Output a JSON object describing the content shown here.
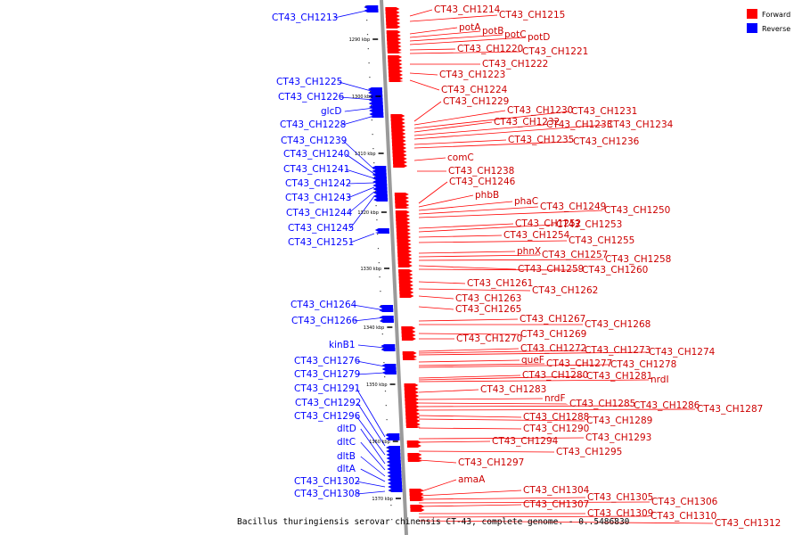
{
  "legend": {
    "forward_label": "Forward",
    "reverse_label": "Reverse",
    "forward_color": "#ff0000",
    "reverse_color": "#0000ff"
  },
  "caption": "Bacillus thuringiensis serovar chinensis CT-43, complete genome. - 0..5486830",
  "kbp_ticks": [
    "1290 kbp",
    "1300 kbp",
    "1310 kbp",
    "1320 kbp",
    "1330 kbp",
    "1340 kbp",
    "1350 kbp",
    "1360 kbp",
    "1370 kbp"
  ],
  "reverse_genes": [
    "CT43_CH1213",
    "CT43_CH1225",
    "CT43_CH1226",
    "glcD",
    "CT43_CH1228",
    "CT43_CH1239",
    "CT43_CH1240",
    "CT43_CH1241",
    "CT43_CH1242",
    "CT43_CH1243",
    "CT43_CH1244",
    "CT43_CH1245",
    "CT43_CH1251",
    "CT43_CH1264",
    "CT43_CH1266",
    "kinB1",
    "CT43_CH1276",
    "CT43_CH1279",
    "CT43_CH1291",
    "CT43_CH1292",
    "CT43_CH1296",
    "dltD",
    "dltC",
    "dltB",
    "dltA",
    "CT43_CH1302",
    "CT43_CH1308"
  ],
  "forward_genes": [
    "CT43_CH1214",
    "CT43_CH1215",
    "potA",
    "potB",
    "potC",
    "potD",
    "CT43_CH1220",
    "CT43_CH1221",
    "CT43_CH1222",
    "CT43_CH1223",
    "CT43_CH1224",
    "CT43_CH1229",
    "CT43_CH1230",
    "CT43_CH1231",
    "CT43_CH1232",
    "CT43_CH1233",
    "CT43_CH1234",
    "CT43_CH1235",
    "CT43_CH1236",
    "comC",
    "CT43_CH1238",
    "CT43_CH1246",
    "phbB",
    "phaC",
    "CT43_CH1249",
    "CT43_CH1250",
    "CT43_CH1252",
    "CT43_CH1253",
    "CT43_CH1254",
    "CT43_CH1255",
    "phnX",
    "CT43_CH1257",
    "CT43_CH1258",
    "CT43_CH1259",
    "CT43_CH1260",
    "CT43_CH1261",
    "CT43_CH1262",
    "CT43_CH1263",
    "CT43_CH1265",
    "CT43_CH1267",
    "CT43_CH1268",
    "CT43_CH1269",
    "CT43_CH1270",
    "CT43_CH1272",
    "CT43_CH1273",
    "CT43_CH1274",
    "queF",
    "CT43_CH1277",
    "CT43_CH1278",
    "CT43_CH1280",
    "CT43_CH1281",
    "nrdI",
    "CT43_CH1283",
    "nrdF",
    "CT43_CH1285",
    "CT43_CH1286",
    "CT43_CH1287",
    "CT43_CH1288",
    "CT43_CH1289",
    "CT43_CH1290",
    "CT43_CH1293",
    "CT43_CH1294",
    "CT43_CH1295",
    "CT43_CH1297",
    "amaA",
    "CT43_CH1304",
    "CT43_CH1305",
    "CT43_CH1306",
    "CT43_CH1307",
    "CT43_CH1309",
    "CT43_CH1310",
    "CT43_CH1312"
  ]
}
